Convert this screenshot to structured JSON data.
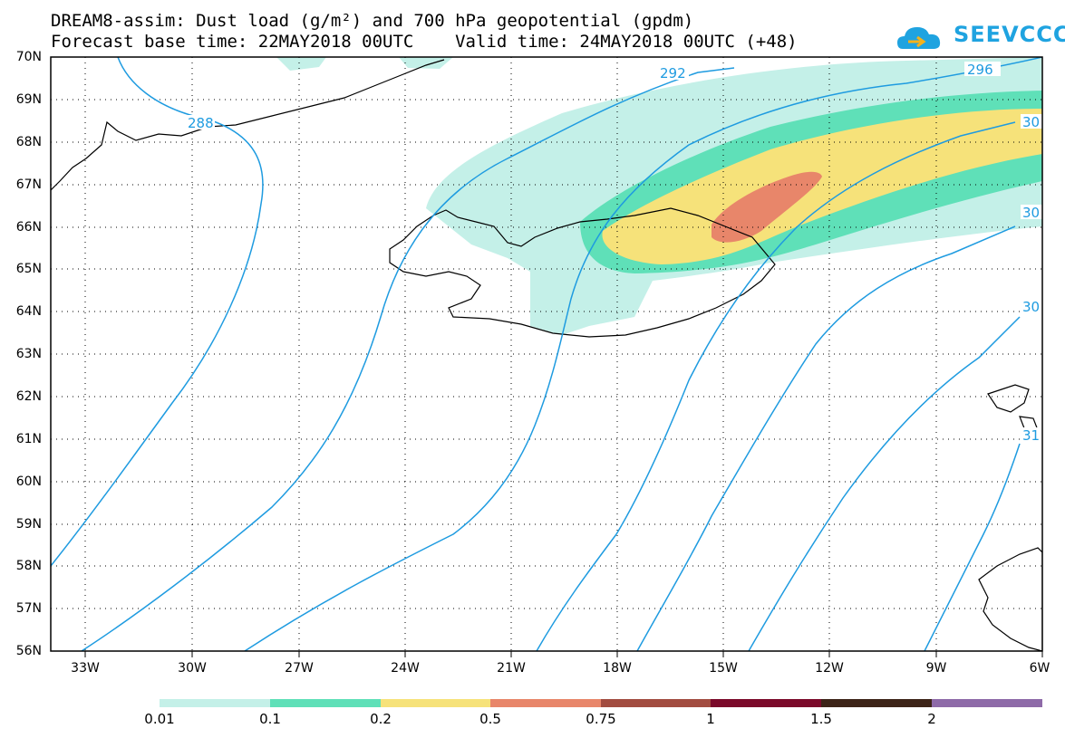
{
  "header": {
    "line1": "DREAM8-assim: Dust load (g/m²) and 700 hPa geopotential (gpdm)",
    "line2": "Forecast base time: 22MAY2018 00UTC    Valid time: 24MAY2018 00UTC (+48)"
  },
  "logo": {
    "text": "SEEVCCC",
    "color": "#1fa3e0"
  },
  "map": {
    "lat_labels": [
      "70N",
      "69N",
      "68N",
      "67N",
      "66N",
      "65N",
      "64N",
      "63N",
      "62N",
      "61N",
      "60N",
      "59N",
      "58N",
      "57N",
      "56N"
    ],
    "lon_labels": [
      "33W",
      "30W",
      "27W",
      "24W",
      "21W",
      "18W",
      "15W",
      "12W",
      "9W",
      "6W"
    ],
    "contour_labels": [
      "288",
      "292",
      "296",
      "30",
      "30",
      "30",
      "31"
    ],
    "contour_color": "#1e9be0"
  },
  "colorbar": {
    "labels": [
      "0.01",
      "0.1",
      "0.2",
      "0.5",
      "0.75",
      "1",
      "1.5",
      "2"
    ],
    "colors": [
      "#c4f0e8",
      "#5fe0b8",
      "#f6e27a",
      "#e8866a",
      "#a24c40",
      "#7b0a2a",
      "#3d2418",
      "#8e6aa8"
    ]
  }
}
